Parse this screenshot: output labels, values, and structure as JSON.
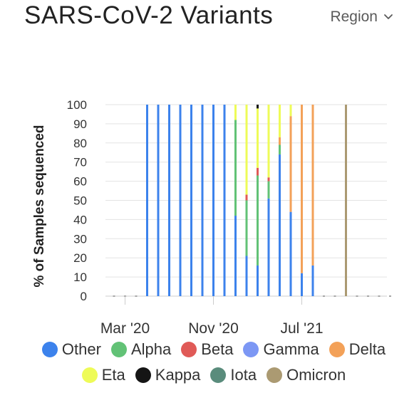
{
  "header": {
    "title": "SARS-CoV-2 Variants",
    "region_label": "Region"
  },
  "colors": {
    "Other": "#3c82ec",
    "Alpha": "#62c276",
    "Beta": "#e05a57",
    "Gamma": "#7c97f4",
    "Delta": "#f3a158",
    "Eta": "#eefb58",
    "Kappa": "#151515",
    "Iota": "#5a8c7c",
    "Omicron": "#ab9a72"
  },
  "chart_data": {
    "type": "bar",
    "stacked": true,
    "orientation": "vertical",
    "ylabel": "% of Samples sequenced",
    "ylim": [
      0,
      100
    ],
    "yticks": [
      0,
      10,
      20,
      30,
      40,
      50,
      60,
      70,
      80,
      90,
      100
    ],
    "xtick_labels": [
      "Mar '20",
      "Nov '20",
      "Jul '21"
    ],
    "xtick_indices": [
      1,
      9,
      17
    ],
    "grid": true,
    "legend_position": "bottom",
    "series_order": [
      "Other",
      "Alpha",
      "Beta",
      "Gamma",
      "Delta",
      "Eta",
      "Kappa",
      "Iota",
      "Omicron"
    ],
    "bars": [
      {
        "index": 0
      },
      {
        "index": 1
      },
      {
        "index": 2
      },
      {
        "index": 3,
        "Other": 100
      },
      {
        "index": 4,
        "Other": 100
      },
      {
        "index": 5,
        "Other": 100
      },
      {
        "index": 6,
        "Other": 100
      },
      {
        "index": 7,
        "Other": 100
      },
      {
        "index": 8,
        "Other": 100
      },
      {
        "index": 9,
        "Other": 100
      },
      {
        "index": 10,
        "Other": 100
      },
      {
        "index": 11,
        "Other": 42,
        "Alpha": 50,
        "Eta": 8
      },
      {
        "index": 12,
        "Other": 21,
        "Alpha": 29,
        "Beta": 3,
        "Eta": 47
      },
      {
        "index": 13,
        "Other": 16,
        "Alpha": 47,
        "Beta": 4,
        "Eta": 31,
        "Kappa": 2
      },
      {
        "index": 14,
        "Other": 51,
        "Alpha": 9,
        "Beta": 2,
        "Eta": 38
      },
      {
        "index": 15,
        "Other": 74,
        "Alpha": 5,
        "Delta": 4,
        "Eta": 17
      },
      {
        "index": 16,
        "Other": 44,
        "Delta": 50,
        "Eta": 6
      },
      {
        "index": 17,
        "Other": 12,
        "Delta": 88
      },
      {
        "index": 18,
        "Other": 16,
        "Delta": 84
      },
      {
        "index": 19
      },
      {
        "index": 20
      },
      {
        "index": 21,
        "Omicron": 100
      },
      {
        "index": 22
      },
      {
        "index": 23
      },
      {
        "index": 24
      },
      {
        "index": 25
      }
    ]
  },
  "legend": {
    "items": [
      "Other",
      "Alpha",
      "Beta",
      "Gamma",
      "Delta",
      "Eta",
      "Kappa",
      "Iota",
      "Omicron"
    ]
  }
}
